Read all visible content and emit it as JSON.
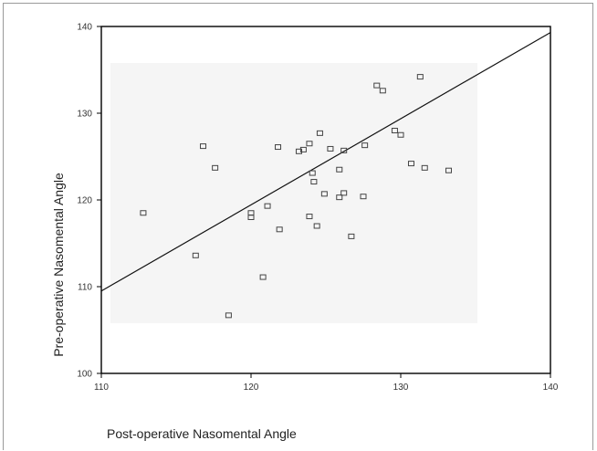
{
  "chart_data": {
    "type": "scatter",
    "title": "",
    "xlabel": "Post-operative Nasomental Angle",
    "ylabel": "Pre-operative Nasomental Angle",
    "xlim": [
      110,
      140
    ],
    "ylim": [
      100,
      140
    ],
    "xticks": [
      "110",
      "120",
      "130",
      "140"
    ],
    "yticks": [
      "100",
      "110",
      "120",
      "130",
      "140"
    ],
    "grid": false,
    "legend": "none",
    "marker": "square",
    "colors": {
      "plot_bg": "#f5f5f5",
      "marker": "#444444",
      "line": "#111111",
      "frame": "#9a9a9a"
    },
    "fit_line": {
      "x": [
        110,
        140
      ],
      "y": [
        109.5,
        139.3
      ]
    },
    "points": [
      {
        "x": 112.8,
        "y": 118.5
      },
      {
        "x": 116.3,
        "y": 113.6
      },
      {
        "x": 116.8,
        "y": 126.2
      },
      {
        "x": 117.6,
        "y": 123.7
      },
      {
        "x": 118.5,
        "y": 106.7
      },
      {
        "x": 120.0,
        "y": 118.5
      },
      {
        "x": 120.0,
        "y": 118.0
      },
      {
        "x": 120.8,
        "y": 111.1
      },
      {
        "x": 121.1,
        "y": 119.3
      },
      {
        "x": 121.8,
        "y": 126.1
      },
      {
        "x": 121.9,
        "y": 116.6
      },
      {
        "x": 123.2,
        "y": 125.6
      },
      {
        "x": 123.5,
        "y": 125.8
      },
      {
        "x": 123.9,
        "y": 126.5
      },
      {
        "x": 123.9,
        "y": 118.1
      },
      {
        "x": 124.1,
        "y": 123.1
      },
      {
        "x": 124.2,
        "y": 122.1
      },
      {
        "x": 124.4,
        "y": 117.0
      },
      {
        "x": 124.6,
        "y": 127.7
      },
      {
        "x": 124.9,
        "y": 120.7
      },
      {
        "x": 125.3,
        "y": 125.9
      },
      {
        "x": 125.9,
        "y": 123.5
      },
      {
        "x": 125.9,
        "y": 120.3
      },
      {
        "x": 126.2,
        "y": 125.7
      },
      {
        "x": 126.2,
        "y": 120.8
      },
      {
        "x": 126.7,
        "y": 115.8
      },
      {
        "x": 127.5,
        "y": 120.4
      },
      {
        "x": 127.6,
        "y": 126.3
      },
      {
        "x": 128.4,
        "y": 133.2
      },
      {
        "x": 128.8,
        "y": 132.6
      },
      {
        "x": 129.6,
        "y": 128.0
      },
      {
        "x": 130.0,
        "y": 127.5
      },
      {
        "x": 130.7,
        "y": 124.2
      },
      {
        "x": 131.3,
        "y": 134.2
      },
      {
        "x": 131.6,
        "y": 123.7
      },
      {
        "x": 133.2,
        "y": 123.4
      }
    ]
  }
}
